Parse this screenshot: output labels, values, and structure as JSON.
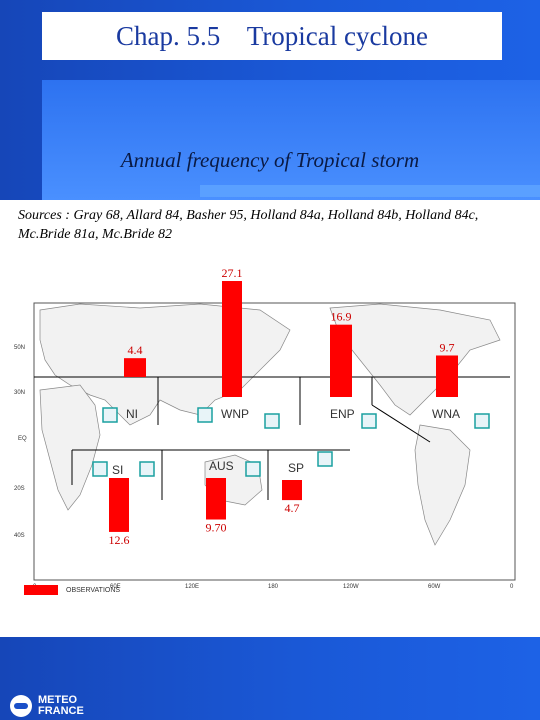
{
  "slide": {
    "title": "Chap. 5.5    Tropical cyclone",
    "subtitle": "Annual frequency of Tropical storm",
    "sources": "Sources : Gray 68, Allard 84, Basher 95, Holland 84a, Holland 84b, Holland 84c, Mc.Bride 81a, Mc.Bride 82",
    "logo_line1": "METEO",
    "logo_line2": "FRANCE"
  },
  "chart_data": {
    "type": "bar",
    "title": "",
    "categories": [
      "NI",
      "WNP",
      "ENP",
      "WNA",
      "SI",
      "AUS",
      "SP"
    ],
    "values": [
      4.4,
      27.1,
      16.9,
      9.7,
      12.6,
      9.7,
      4.7
    ],
    "value_labels": [
      "4.4",
      "27.1",
      "16.9",
      "9.7",
      "12.6",
      "9.70",
      "4.7"
    ],
    "hemisphere": [
      "north",
      "north",
      "north",
      "north",
      "south",
      "south",
      "south"
    ],
    "bar_color": "#ff0000",
    "value_label_color": "#cc0000",
    "legend": {
      "label": "OBSERVATIONS",
      "position": "bottom-left"
    },
    "lat_labels": [
      "50N",
      "30N",
      "EQ",
      "20S",
      "40S"
    ],
    "lon_labels": [
      "0",
      "60E",
      "120E",
      "180",
      "120W",
      "60W",
      "0"
    ],
    "background": "world map"
  }
}
